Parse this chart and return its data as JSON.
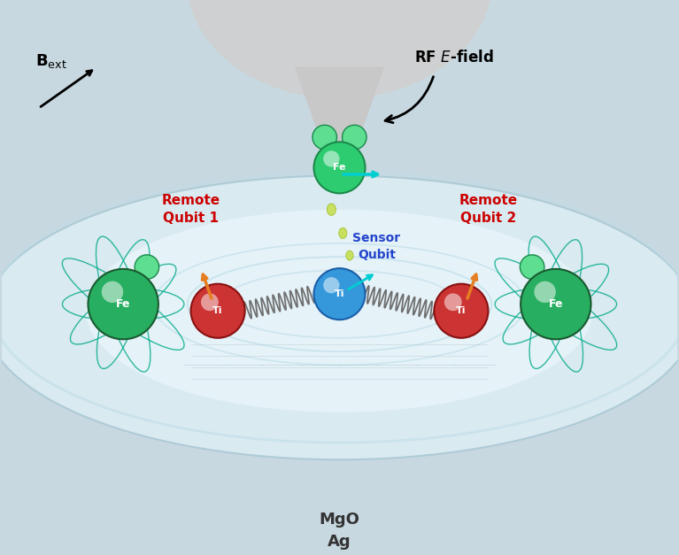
{
  "bg_color": "#c8d8e0",
  "tip_color": "#d0d0d0",
  "surface_color": "#e8f0f4",
  "surface_edge_color": "#b0c8d0",
  "fe_tip_color": "#2ecc71",
  "fe_left_color": "#27ae60",
  "fe_right_color": "#27ae60",
  "ti_sensor_color": "#3498db",
  "ti_left_color": "#e74c3c",
  "ti_right_color": "#e74c3c",
  "arrow_orange": "#e67e22",
  "arrow_cyan": "#00ced1",
  "drop_color": "#c8e060",
  "title_bottom": "MgO\nAg",
  "label_bext": "$\\mathbf{B}_{\\mathrm{ext}}$",
  "label_rf": "RF $\\mathit{E}$-field",
  "label_sensor": "Sensor\nQubit",
  "label_remote1": "Remote\nQubit 1",
  "label_remote2": "Remote\nQubit 2",
  "label_fe": "Fe",
  "label_ti": "Ti",
  "fig_width": 7.67,
  "fig_height": 6.27,
  "dpi": 100
}
